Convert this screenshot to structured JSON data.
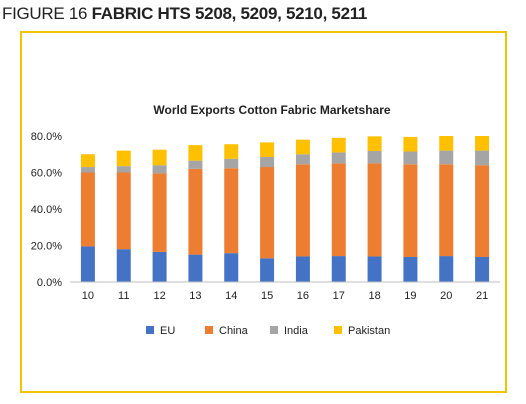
{
  "figure": {
    "number_label": "FIGURE 16",
    "title": "FABRIC HTS 5208, 5209, 5210, 5211"
  },
  "chart_data": {
    "type": "bar",
    "stacked": true,
    "title": "World Exports Cotton Fabric Marketshare",
    "xlabel": "",
    "ylabel": "",
    "categories": [
      "10",
      "11",
      "12",
      "13",
      "14",
      "15",
      "16",
      "17",
      "18",
      "19",
      "20",
      "21"
    ],
    "ylim": [
      0,
      80
    ],
    "yticks": [
      0,
      20,
      40,
      60,
      80
    ],
    "ytick_labels": [
      "0.0%",
      "20.0%",
      "40.0%",
      "60.0%",
      "80.0%"
    ],
    "grid": false,
    "legend_position": "bottom",
    "series": [
      {
        "name": "EU",
        "color": "#4472c4",
        "values": [
          19.5,
          18.0,
          16.5,
          15.0,
          15.8,
          13.0,
          14.0,
          14.2,
          14.0,
          13.7,
          14.2,
          13.7
        ]
      },
      {
        "name": "China",
        "color": "#ed7d31",
        "values": [
          40.5,
          42.0,
          43.0,
          47.0,
          46.5,
          50.0,
          50.5,
          50.8,
          51.0,
          50.8,
          50.3,
          50.3
        ]
      },
      {
        "name": "India",
        "color": "#a5a5a5",
        "values": [
          3.0,
          3.5,
          4.5,
          4.5,
          5.2,
          5.5,
          5.5,
          6.0,
          6.8,
          7.0,
          7.5,
          8.0
        ]
      },
      {
        "name": "Pakistan",
        "color": "#ffc000",
        "values": [
          7.0,
          8.5,
          8.5,
          8.5,
          8.0,
          8.0,
          8.0,
          8.0,
          8.0,
          8.0,
          8.0,
          8.0
        ]
      }
    ]
  }
}
